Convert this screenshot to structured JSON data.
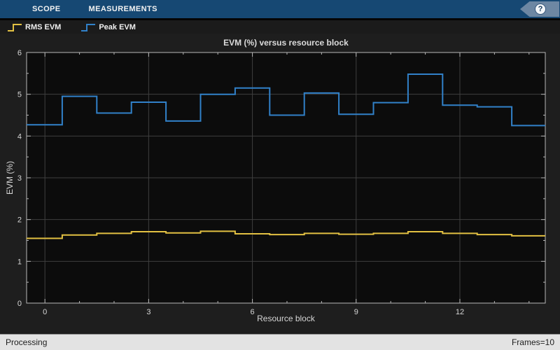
{
  "toolbar": {
    "tabs": [
      {
        "label": "SCOPE"
      },
      {
        "label": "MEASUREMENTS"
      }
    ],
    "help_icon_glyph": "?"
  },
  "legend": {
    "items": [
      {
        "label": "RMS EVM",
        "color": "#e2c042"
      },
      {
        "label": "Peak EVM",
        "color": "#3181c9"
      }
    ]
  },
  "status_bar": {
    "left": "Processing",
    "right": "Frames=10"
  },
  "colors": {
    "toolstrip_bg": "#164873",
    "figure_bg": "#1e1e1e",
    "plot_bg": "#0c0c0c",
    "grid": "#3f3f3f",
    "axis": "#b8b8b8",
    "tick_label": "#d6d6d6"
  },
  "chart_data": {
    "type": "line",
    "line_style": "stairs",
    "title": "EVM (%) versus resource block",
    "xlabel": "Resource block",
    "ylabel": "EVM (%)",
    "xlim": [
      -0.53,
      14.47
    ],
    "ylim": [
      0,
      6
    ],
    "x_major_ticks": [
      0,
      3,
      6,
      9,
      12
    ],
    "x_minor_ticks": [
      0,
      1,
      2,
      3,
      4,
      5,
      6,
      7,
      8,
      9,
      10,
      11,
      12,
      13,
      14
    ],
    "y_major_ticks": [
      0,
      1,
      2,
      3,
      4,
      5,
      6
    ],
    "y_minor_ticks": [
      0.5,
      1.5,
      2.5,
      3.5,
      4.5,
      5.5
    ],
    "grid": true,
    "legend_position": "top-bar-left",
    "categories": [
      0,
      1,
      2,
      3,
      4,
      5,
      6,
      7,
      8,
      9,
      10,
      11,
      12,
      13,
      14
    ],
    "series": [
      {
        "name": "RMS EVM",
        "color": "#e2c042",
        "values": [
          1.55,
          1.63,
          1.67,
          1.71,
          1.68,
          1.72,
          1.66,
          1.64,
          1.67,
          1.65,
          1.67,
          1.71,
          1.67,
          1.64,
          1.61
        ]
      },
      {
        "name": "Peak EVM",
        "color": "#3181c9",
        "values": [
          4.27,
          4.95,
          4.55,
          4.81,
          4.36,
          5.0,
          5.15,
          4.5,
          5.03,
          4.52,
          4.8,
          5.48,
          4.74,
          4.7,
          4.25
        ]
      }
    ]
  }
}
